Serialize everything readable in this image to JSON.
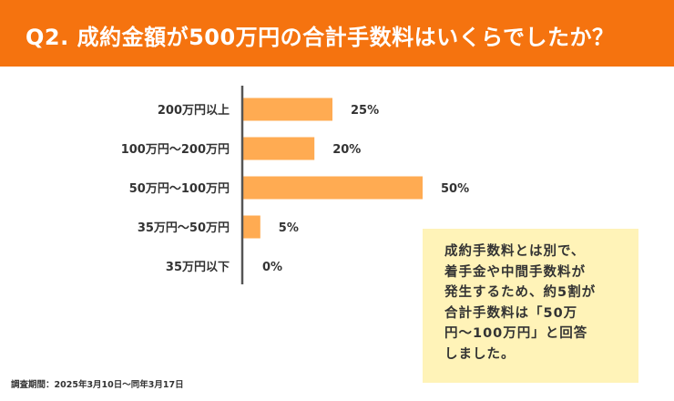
{
  "header": {
    "title": "Q2. 成約金額が500万円の合計手数料はいくらでしたか？"
  },
  "chart_data": {
    "type": "bar",
    "orientation": "horizontal",
    "categories": [
      "200万円以上",
      "100万円〜200万円",
      "50万円〜100万円",
      "35万円〜50万円",
      "35万円以下"
    ],
    "values": [
      25,
      20,
      50,
      5,
      0
    ],
    "value_labels": [
      "25%",
      "20%",
      "50%",
      "5%",
      "0%"
    ],
    "unit": "%",
    "xlim": [
      0,
      50
    ],
    "grid": false,
    "legend": "none",
    "bar_color": "#ffab52"
  },
  "note": {
    "lines": [
      "成約手数料とは別で、",
      "着手金や中間手数料が",
      "発生するため、約5割が",
      "合計手数料は「50万",
      "円〜100万円」と回答",
      "しました。"
    ]
  },
  "footer": {
    "survey_period": "調査期間：2025年3月10日〜同年3月17日"
  },
  "colors": {
    "header": "#f5730f",
    "note_bg": "#fff3b8",
    "axis": "#555555"
  }
}
